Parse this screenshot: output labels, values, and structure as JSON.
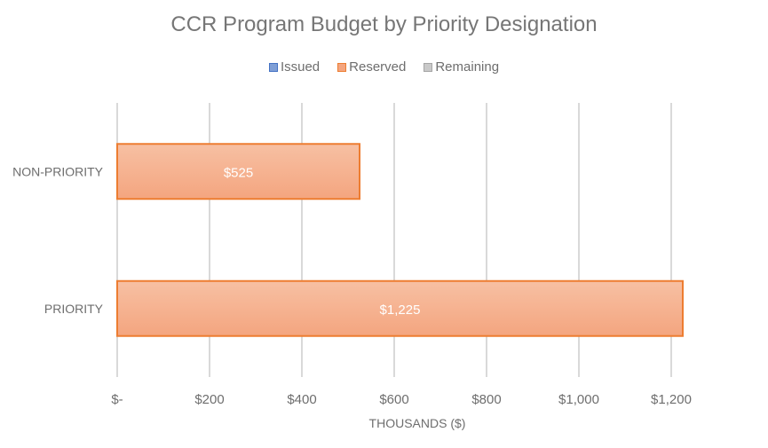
{
  "chart_data": {
    "type": "bar",
    "orientation": "horizontal",
    "title": "CCR Program Budget by Priority Designation",
    "xlabel": "THOUSANDS ($)",
    "ylabel": "",
    "xlim": [
      0,
      1200
    ],
    "x_ticks": [
      0,
      200,
      400,
      600,
      800,
      1000,
      1200
    ],
    "x_tick_labels": [
      "$-",
      "$200",
      "$400",
      "$600",
      "$800",
      "$1,000",
      "$1,200"
    ],
    "categories": [
      "NON-PRIORITY",
      "PRIORITY"
    ],
    "legend": {
      "position": "top",
      "entries": [
        {
          "name": "Issued",
          "color": "#4472c4"
        },
        {
          "name": "Reserved",
          "color": "#ed7d31"
        },
        {
          "name": "Remaining",
          "color": "#a5a5a5"
        }
      ]
    },
    "series": [
      {
        "name": "Issued",
        "values": [
          0,
          0
        ]
      },
      {
        "name": "Reserved",
        "values": [
          525,
          1225
        ],
        "data_labels": [
          "$525",
          "$1,225"
        ]
      },
      {
        "name": "Remaining",
        "values": [
          0,
          0
        ]
      }
    ],
    "grid": true,
    "colors": {
      "reserved_fill_top": "#f7c0a3",
      "reserved_fill_bottom": "#f4a57f",
      "reserved_border": "#ed7d31",
      "gridline": "#d9d9d9",
      "text": "#6e6e6e"
    }
  }
}
